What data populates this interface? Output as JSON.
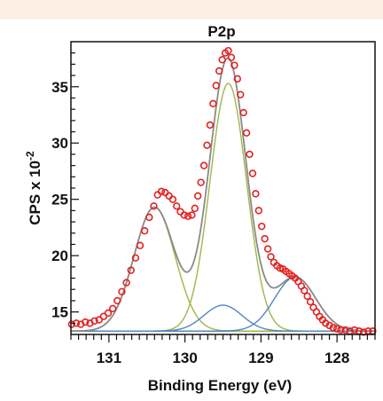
{
  "theme": {
    "band_color": "#fdefe4",
    "component_green": "#9bb84a",
    "component_blue": "#4f86c6",
    "envelope_color": "#8a8a8a",
    "baseline_color": "#7a6a22",
    "marker_color": "#e32222"
  },
  "chart_data": {
    "type": "scatter",
    "title": "P2p",
    "xlabel": "Binding Energy (eV)",
    "ylabel_main": "CPS x 10",
    "ylabel_exp": "-2",
    "x_reversed": true,
    "xlim": [
      131.5,
      127.5
    ],
    "ylim": [
      13,
      39
    ],
    "x_ticks": [
      131,
      130,
      129,
      128
    ],
    "x_tick_labels": [
      "131",
      "130",
      "129",
      "128"
    ],
    "y_ticks": [
      15,
      20,
      25,
      30,
      35
    ],
    "y_tick_labels": [
      "15",
      "20",
      "25",
      "30",
      "35"
    ],
    "grid": false,
    "baseline": 13.3,
    "components": [
      {
        "center": 130.4,
        "amplitude": 11.0,
        "sigma": 0.27,
        "color_key": "component_green"
      },
      {
        "center": 129.43,
        "amplitude": 22.0,
        "sigma": 0.24,
        "color_key": "component_green"
      },
      {
        "center": 129.5,
        "amplitude": 2.3,
        "sigma": 0.25,
        "color_key": "component_blue"
      },
      {
        "center": 128.55,
        "amplitude": 4.8,
        "sigma": 0.27,
        "color_key": "component_blue"
      }
    ],
    "points": [
      [
        131.49,
        13.9
      ],
      [
        131.43,
        14.0
      ],
      [
        131.37,
        13.9
      ],
      [
        131.31,
        14.1
      ],
      [
        131.25,
        14.0
      ],
      [
        131.19,
        14.2
      ],
      [
        131.13,
        14.3
      ],
      [
        131.07,
        14.6
      ],
      [
        131.01,
        14.9
      ],
      [
        130.95,
        15.3
      ],
      [
        130.89,
        16.0
      ],
      [
        130.83,
        16.8
      ],
      [
        130.77,
        17.6
      ],
      [
        130.71,
        18.7
      ],
      [
        130.65,
        19.8
      ],
      [
        130.59,
        20.9
      ],
      [
        130.53,
        22.2
      ],
      [
        130.47,
        23.4
      ],
      [
        130.41,
        24.4
      ],
      [
        130.36,
        25.4
      ],
      [
        130.31,
        25.7
      ],
      [
        130.26,
        25.6
      ],
      [
        130.21,
        25.3
      ],
      [
        130.16,
        25.0
      ],
      [
        130.11,
        24.4
      ],
      [
        130.06,
        23.9
      ],
      [
        130.01,
        23.6
      ],
      [
        129.96,
        23.5
      ],
      [
        129.91,
        23.6
      ],
      [
        129.87,
        24.2
      ],
      [
        129.83,
        25.3
      ],
      [
        129.79,
        26.5
      ],
      [
        129.75,
        28.0
      ],
      [
        129.71,
        29.8
      ],
      [
        129.67,
        31.6
      ],
      [
        129.63,
        33.5
      ],
      [
        129.59,
        35.1
      ],
      [
        129.55,
        36.4
      ],
      [
        129.51,
        37.4
      ],
      [
        129.47,
        38.0
      ],
      [
        129.43,
        38.2
      ],
      [
        129.39,
        37.6
      ],
      [
        129.35,
        36.9
      ],
      [
        129.31,
        35.7
      ],
      [
        129.27,
        34.3
      ],
      [
        129.23,
        32.7
      ],
      [
        129.19,
        30.9
      ],
      [
        129.15,
        29.0
      ],
      [
        129.11,
        27.3
      ],
      [
        129.07,
        25.5
      ],
      [
        129.03,
        24.0
      ],
      [
        128.99,
        22.6
      ],
      [
        128.95,
        21.5
      ],
      [
        128.91,
        20.6
      ],
      [
        128.87,
        19.9
      ],
      [
        128.83,
        19.4
      ],
      [
        128.79,
        19.1
      ],
      [
        128.75,
        18.9
      ],
      [
        128.71,
        18.8
      ],
      [
        128.67,
        18.6
      ],
      [
        128.63,
        18.4
      ],
      [
        128.59,
        18.2
      ],
      [
        128.55,
        18.0
      ],
      [
        128.51,
        17.7
      ],
      [
        128.47,
        17.3
      ],
      [
        128.43,
        16.9
      ],
      [
        128.39,
        16.4
      ],
      [
        128.35,
        15.9
      ],
      [
        128.31,
        15.4
      ],
      [
        128.27,
        15.0
      ],
      [
        128.23,
        14.6
      ],
      [
        128.19,
        14.3
      ],
      [
        128.15,
        14.0
      ],
      [
        128.1,
        13.8
      ],
      [
        128.05,
        13.6
      ],
      [
        128.0,
        13.5
      ],
      [
        127.95,
        13.4
      ],
      [
        127.89,
        13.4
      ],
      [
        127.83,
        13.3
      ],
      [
        127.77,
        13.4
      ],
      [
        127.71,
        13.3
      ],
      [
        127.65,
        13.2
      ],
      [
        127.59,
        13.3
      ],
      [
        127.53,
        13.3
      ]
    ]
  }
}
